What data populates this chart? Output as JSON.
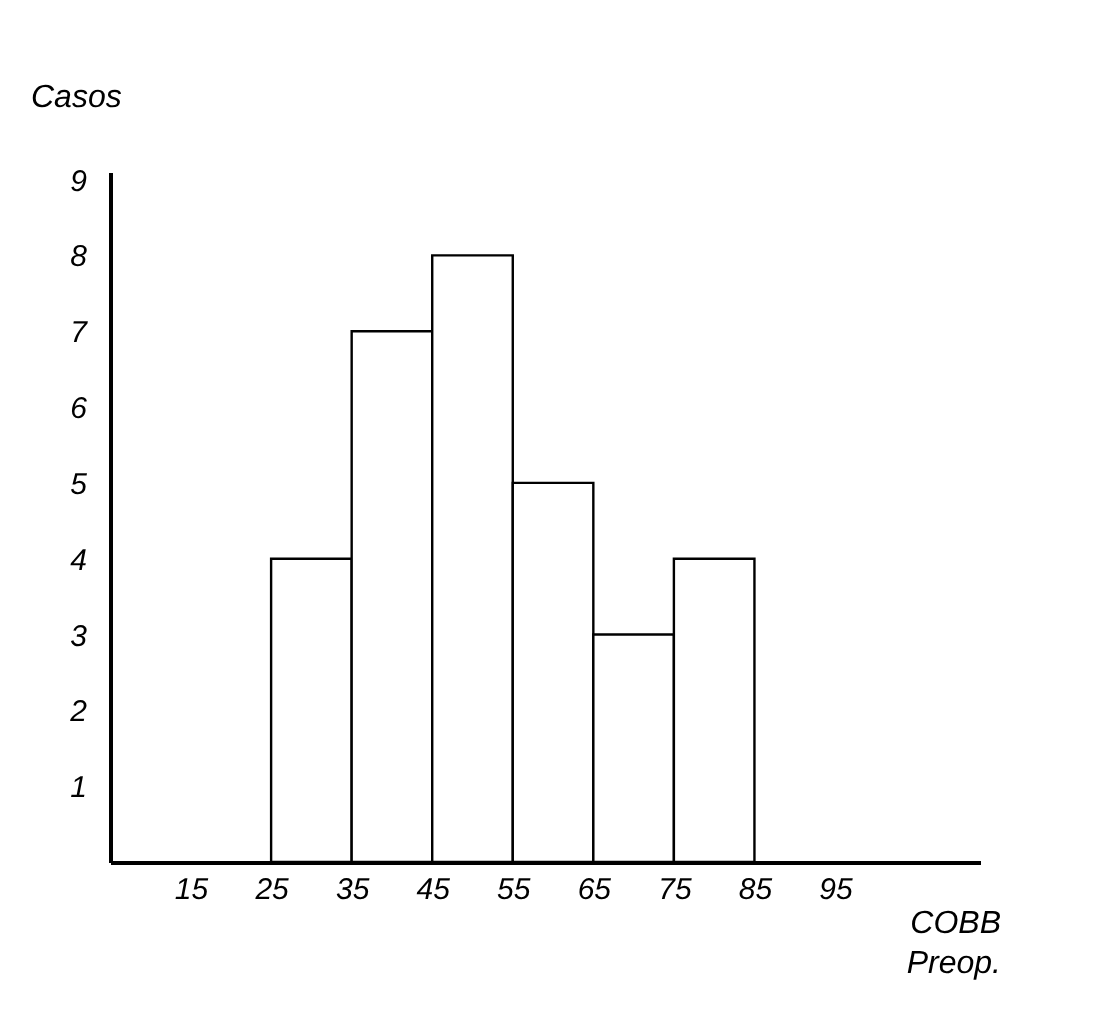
{
  "chart_data": {
    "type": "histogram",
    "xlabel": "COBB Preop.",
    "ylabel": "Casos",
    "bins": [
      25,
      35,
      45,
      55,
      65,
      75,
      85
    ],
    "values": [
      4,
      7,
      8,
      5,
      3,
      4
    ],
    "color": "#ffffff",
    "xlim": [
      5,
      113
    ],
    "xticks": [
      15,
      25,
      35,
      45,
      55,
      65,
      75,
      85,
      95
    ],
    "ylim": [
      0,
      9.1
    ],
    "yticks": [
      1,
      2,
      3,
      4,
      5,
      6,
      7,
      8,
      9
    ],
    "grid": false
  }
}
